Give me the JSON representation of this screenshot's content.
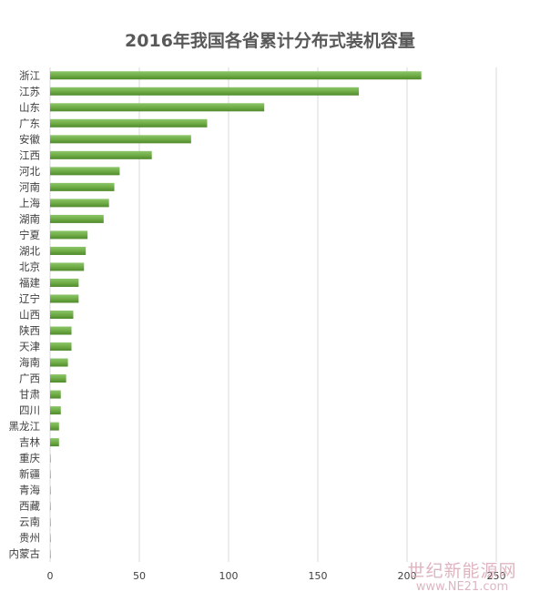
{
  "chart_data": {
    "type": "bar",
    "orientation": "horizontal",
    "title": "2016年我国各省累计分布式装机容量",
    "xlabel": "",
    "ylabel": "",
    "xlim": [
      0,
      250
    ],
    "xticks": [
      0,
      50,
      100,
      150,
      200,
      250
    ],
    "grid": true,
    "legend": "none",
    "bar_color": "#70ad47",
    "categories": [
      "浙江",
      "江苏",
      "山东",
      "广东",
      "安徽",
      "江西",
      "河北",
      "河南",
      "上海",
      "湖南",
      "宁夏",
      "湖北",
      "北京",
      "福建",
      "辽宁",
      "山西",
      "陕西",
      "天津",
      "海南",
      "广西",
      "甘肃",
      "四川",
      "黑龙江",
      "吉林",
      "重庆",
      "新疆",
      "青海",
      "西藏",
      "云南",
      "贵州",
      "内蒙古"
    ],
    "values": [
      208,
      173,
      120,
      88,
      79,
      57,
      39,
      36,
      33,
      30,
      21,
      20,
      19,
      16,
      16,
      13,
      12,
      12,
      10,
      9,
      6,
      6,
      5,
      5,
      0.3,
      0.3,
      0.3,
      0.2,
      0.2,
      0.2,
      0.1
    ]
  },
  "watermark": {
    "text_cn": "世纪新能源网",
    "text_url": "www.NE21.com"
  }
}
